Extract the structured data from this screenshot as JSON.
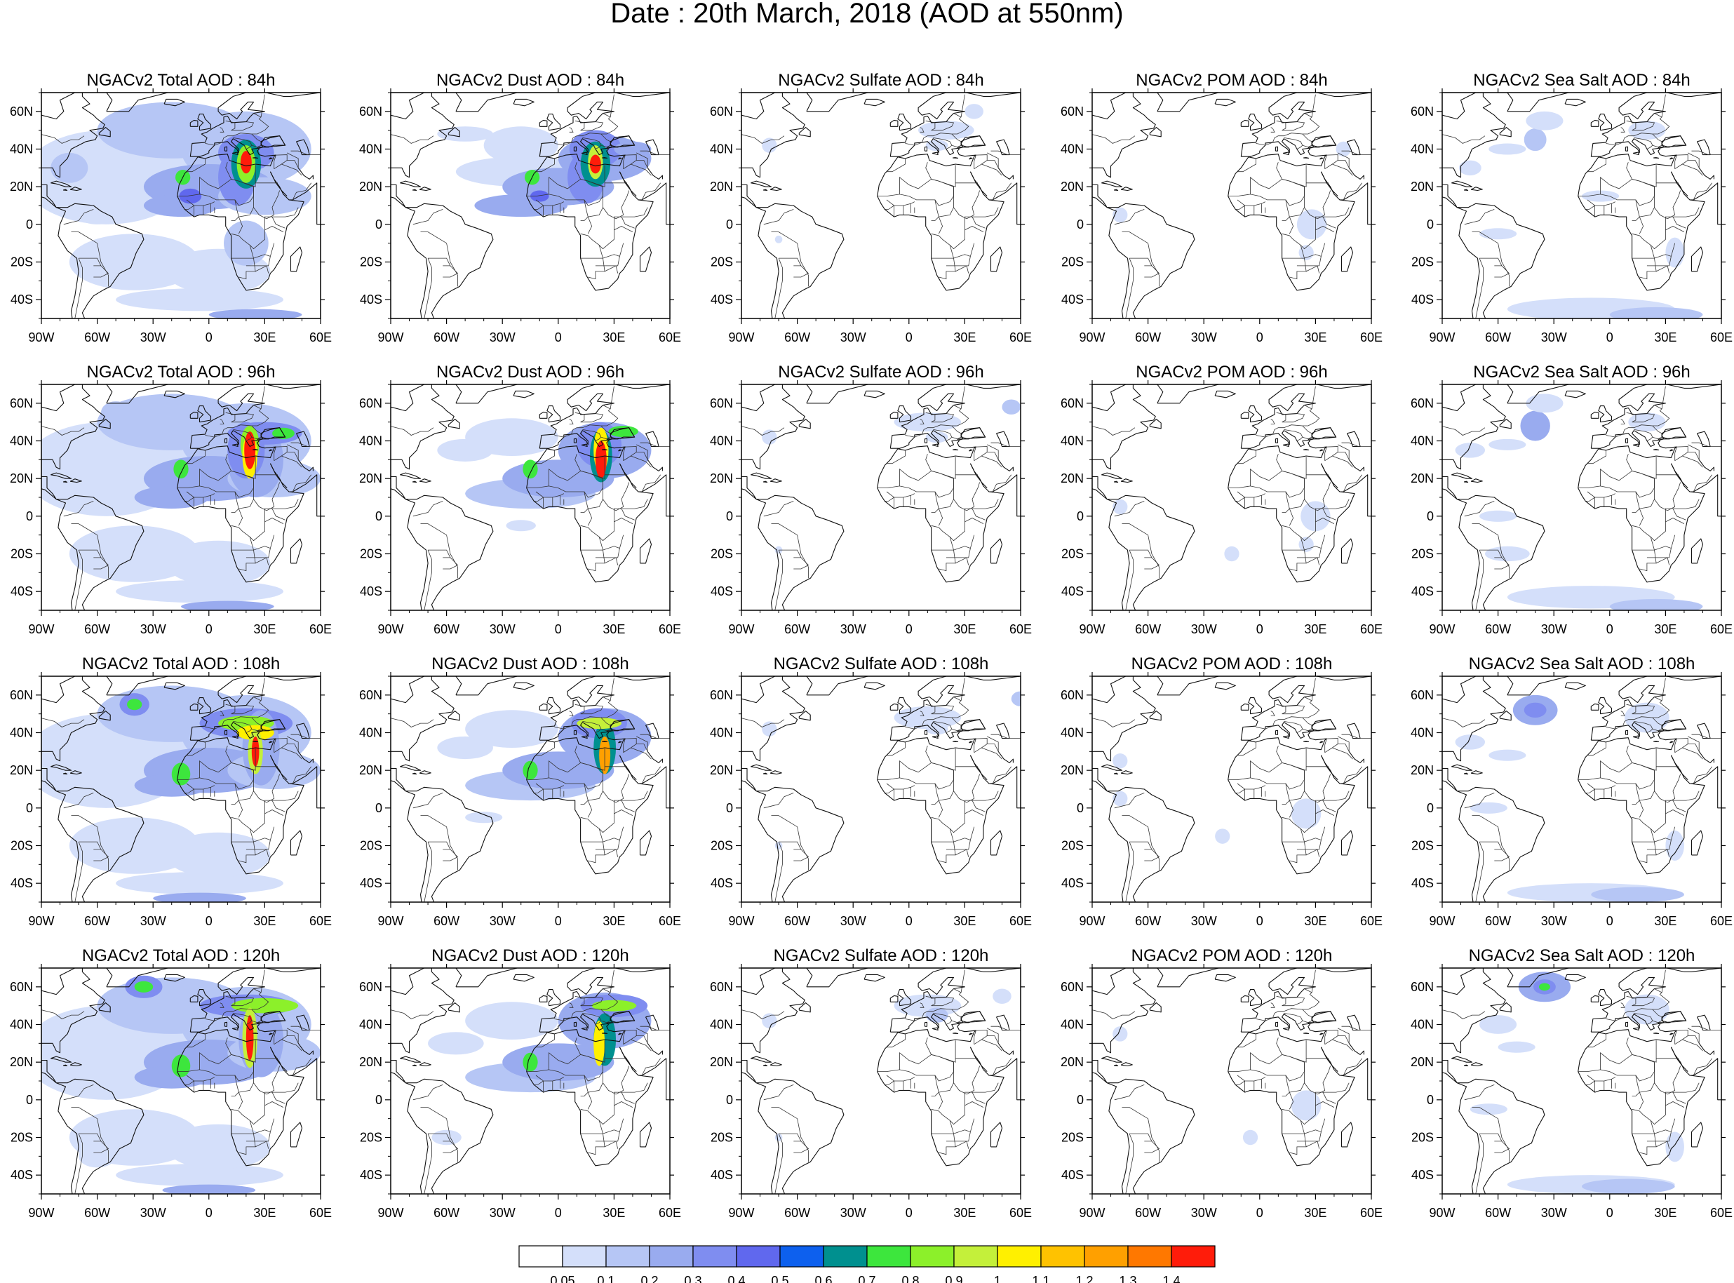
{
  "figure": {
    "title": "Date : 20th March, 2018 (AOD at 550nm)"
  },
  "axes": {
    "lon_ticks": [
      "90W",
      "60W",
      "30W",
      "0",
      "30E",
      "60E"
    ],
    "lat_ticks": [
      "60N",
      "40N",
      "20N",
      "0",
      "20S",
      "40S"
    ],
    "lon_range": [
      -90,
      60
    ],
    "lat_range": [
      -50,
      70
    ]
  },
  "panels": [
    [
      "NGACv2 Total AOD : 84h",
      "NGACv2 Dust AOD : 84h",
      "NGACv2 Sulfate AOD : 84h",
      "NGACv2 POM AOD : 84h",
      "NGACv2 Sea Salt AOD : 84h"
    ],
    [
      "NGACv2 Total AOD : 96h",
      "NGACv2 Dust AOD : 96h",
      "NGACv2 Sulfate AOD : 96h",
      "NGACv2 POM AOD : 96h",
      "NGACv2 Sea Salt AOD : 96h"
    ],
    [
      "NGACv2 Total AOD : 108h",
      "NGACv2 Dust AOD : 108h",
      "NGACv2 Sulfate AOD : 108h",
      "NGACv2 POM AOD : 108h",
      "NGACv2 Sea Salt AOD : 108h"
    ],
    [
      "NGACv2 Total AOD : 120h",
      "NGACv2 Dust AOD : 120h",
      "NGACv2 Sulfate AOD : 120h",
      "NGACv2 POM AOD : 120h",
      "NGACv2 Sea Salt  AOD : 120h"
    ]
  ],
  "colorbar": {
    "labels": [
      "0.05",
      "0.1",
      "0.2",
      "0.3",
      "0.4",
      "0.5",
      "0.6",
      "0.7",
      "0.8",
      "0.9",
      "1",
      "1.1",
      "1.2",
      "1.3",
      "1.4"
    ],
    "colors": [
      "#ffffff",
      "#d4dffa",
      "#b6c6f5",
      "#99abef",
      "#7f8df0",
      "#6068ee",
      "#0d60ee",
      "#00908f",
      "#3de63d",
      "#8cf02a",
      "#c4f03a",
      "#fff000",
      "#ffc200",
      "#ffa000",
      "#ff7800",
      "#ff1c0a"
    ]
  }
}
